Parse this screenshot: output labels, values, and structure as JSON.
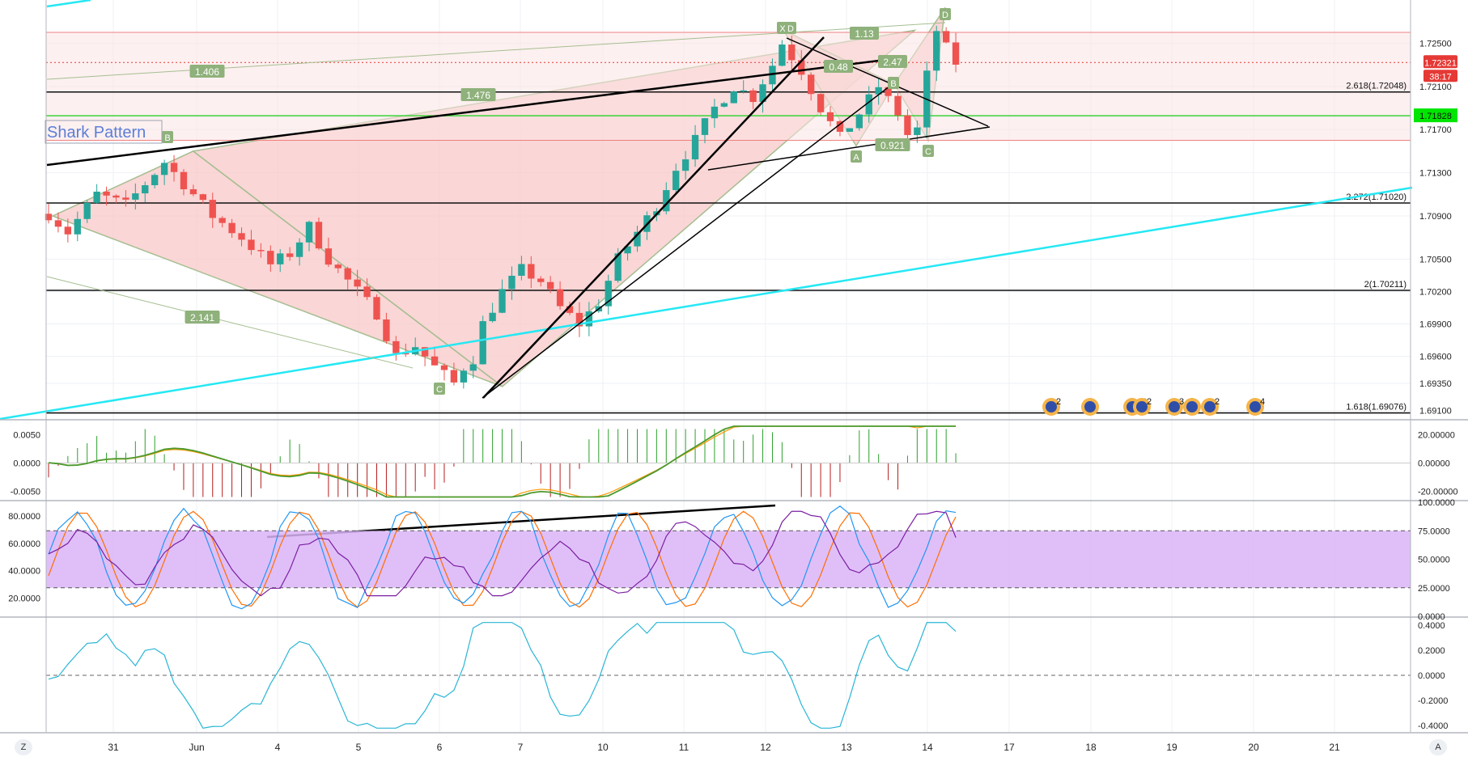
{
  "colors": {
    "bg": "#ffffff",
    "grid": "#eef1f4",
    "up": "#26a69a",
    "down": "#ef5350",
    "harmonic_fill": "#f8c8c8",
    "harmonic_line": "#a5be91",
    "trend": "#000000",
    "cyan": "#25e8f4",
    "green_level": "#39d339",
    "red_level": "#f08080",
    "macd_main": "#4b9a2e",
    "macd_signal": "#ff9800",
    "stoch_k": "#2196f3",
    "stoch_d": "#ff6d00",
    "rsi": "#7b1fa2",
    "stoch_band": "#dab4f7",
    "osc": "#29b6d6",
    "price_badge": "#e53935",
    "green_badge": "#00e600"
  },
  "toolbar": {
    "left_button": "Z",
    "right_button": "A"
  },
  "title_label": "Shark Pattern",
  "price_axis": {
    "labels": [
      "1.72500",
      "1.72100",
      "1.71700",
      "1.71300",
      "1.70900",
      "1.70500",
      "1.70200",
      "1.69900",
      "1.69600",
      "1.69350",
      "1.69100"
    ],
    "current_price": "1.72321",
    "countdown": "38:17",
    "green_level_price": "1.71828"
  },
  "macd_axis": {
    "left": [
      "0.0050",
      "0.0000",
      "-0.0050"
    ],
    "right": [
      "20.00000",
      "0.00000",
      "-20.00000"
    ]
  },
  "stoch_axis": {
    "left": [
      "80.0000",
      "60.0000",
      "40.0000",
      "20.0000"
    ],
    "right": [
      "100.0000",
      "75.0000",
      "50.0000",
      "25.0000",
      "0.0000"
    ]
  },
  "osc_axis": {
    "right": [
      "0.4000",
      "0.2000",
      "0.0000",
      "-0.2000",
      "-0.4000"
    ]
  },
  "time_axis": {
    "labels": [
      "31",
      "Jun",
      "4",
      "5",
      "6",
      "7",
      "10",
      "11",
      "12",
      "13",
      "14",
      "17",
      "18",
      "19",
      "20",
      "21"
    ]
  },
  "fib_levels": [
    {
      "label": "2.618(1.72048)",
      "price": 1.72048
    },
    {
      "label": "2.272(1.71020)",
      "price": 1.7102
    },
    {
      "label": "2(1.70211)",
      "price": 1.70211
    },
    {
      "label": "1.618(1.69076)",
      "price": 1.69076
    }
  ],
  "pattern_points": {
    "large": [
      "B",
      "C",
      "X",
      "D"
    ],
    "small": [
      "A",
      "B",
      "C",
      "D"
    ]
  },
  "ratio_labels": [
    "1.406",
    "1.476",
    "2.141",
    "1.13",
    "0.48",
    "2.47",
    "0.921"
  ],
  "event_markers": [
    "2",
    "",
    "12",
    "2",
    "3",
    "",
    "2",
    "4"
  ],
  "chart_data": {
    "type": "candlestick",
    "title": "Shark Pattern",
    "x_ticks": [
      "31",
      "Jun",
      "4",
      "5",
      "6",
      "7",
      "10",
      "11",
      "12",
      "13",
      "14",
      "17",
      "18",
      "19",
      "20",
      "21"
    ],
    "price_range": [
      1.6902,
      1.729
    ],
    "price_path": [
      [
        0,
        1.7092
      ],
      [
        2,
        1.7075
      ],
      [
        5,
        1.711
      ],
      [
        8,
        1.71
      ],
      [
        12,
        1.714
      ],
      [
        14,
        1.712
      ],
      [
        17,
        1.709
      ],
      [
        20,
        1.707
      ],
      [
        23,
        1.7045
      ],
      [
        25,
        1.7055
      ],
      [
        27,
        1.708
      ],
      [
        29,
        1.705
      ],
      [
        31,
        1.703
      ],
      [
        34,
        1.7
      ],
      [
        36,
        1.696
      ],
      [
        38,
        1.697
      ],
      [
        40,
        1.695
      ],
      [
        42,
        1.6935
      ],
      [
        43,
        1.695
      ],
      [
        44,
        1.6958
      ],
      [
        45,
        1.699
      ],
      [
        47,
        1.702
      ],
      [
        49,
        1.704
      ],
      [
        51,
        1.703
      ],
      [
        53,
        1.7005
      ],
      [
        55,
        1.699
      ],
      [
        57,
        1.701
      ],
      [
        59,
        1.705
      ],
      [
        61,
        1.7075
      ],
      [
        63,
        1.71
      ],
      [
        65,
        1.7135
      ],
      [
        67,
        1.716
      ],
      [
        69,
        1.719
      ],
      [
        71,
        1.721
      ],
      [
        73,
        1.72
      ],
      [
        75,
        1.723
      ],
      [
        76,
        1.725
      ],
      [
        78,
        1.7225
      ],
      [
        80,
        1.719
      ],
      [
        82,
        1.7162
      ],
      [
        84,
        1.7185
      ],
      [
        86,
        1.721
      ],
      [
        88,
        1.7185
      ],
      [
        89,
        1.7165
      ],
      [
        90,
        1.717
      ],
      [
        91,
        1.722
      ],
      [
        92,
        1.7262
      ],
      [
        93,
        1.7245
      ],
      [
        94,
        1.7232
      ]
    ],
    "last_price": 1.72321,
    "horizontal_levels": [
      {
        "label": "2.618(1.72048)",
        "value": 1.72048
      },
      {
        "label": "2.272(1.71020)",
        "value": 1.7102
      },
      {
        "label": "2(1.70211)",
        "value": 1.70211
      },
      {
        "label": "1.618(1.69076)",
        "value": 1.69076
      },
      {
        "value": 1.71828
      }
    ],
    "harmonic_points": [
      {
        "label": "B",
        "price": 1.715
      },
      {
        "label": "C",
        "price": 1.6932
      },
      {
        "label": "X",
        "price": 1.726
      },
      {
        "label": "A",
        "price": 1.7155
      },
      {
        "label": "B",
        "price": 1.7212
      },
      {
        "label": "C",
        "price": 1.716
      },
      {
        "label": "D",
        "price": 1.728
      }
    ],
    "ratios": [
      "1.406",
      "1.476",
      "2.141",
      "1.13",
      "0.48",
      "2.47",
      "0.921"
    ],
    "macd_range": [
      -0.0065,
      0.0075
    ],
    "stoch_range": [
      0,
      100
    ],
    "stoch_band": [
      25,
      75
    ],
    "osc_range": [
      -0.45,
      0.45
    ]
  }
}
